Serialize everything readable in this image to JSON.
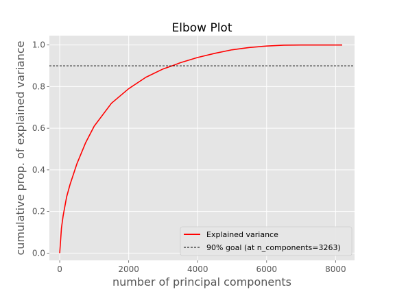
{
  "chart_data": {
    "type": "line",
    "title": "Elbow Plot",
    "xlabel": "number of principal components",
    "ylabel": "cumulative prop. of explained variance",
    "xlim": [
      -300,
      8550
    ],
    "ylim": [
      -0.035,
      1.045
    ],
    "xticks": [
      0,
      2000,
      4000,
      6000,
      8000
    ],
    "yticks": [
      0.0,
      0.2,
      0.4,
      0.6,
      0.8,
      1.0
    ],
    "grid": true,
    "legend_position": "lower-right",
    "series": [
      {
        "name": "Explained variance",
        "color": "#ff0000",
        "style": "solid",
        "x": [
          0,
          50,
          100,
          200,
          300,
          500,
          750,
          1000,
          1500,
          2000,
          2500,
          3000,
          3263,
          3500,
          4000,
          4500,
          5000,
          5500,
          6000,
          6500,
          7000,
          7500,
          8000,
          8192
        ],
        "y": [
          0.0,
          0.12,
          0.18,
          0.27,
          0.33,
          0.43,
          0.53,
          0.61,
          0.72,
          0.79,
          0.845,
          0.885,
          0.9,
          0.915,
          0.94,
          0.96,
          0.977,
          0.988,
          0.995,
          0.999,
          1.0,
          1.0,
          1.0,
          1.0
        ]
      },
      {
        "name": "90% goal (at n_components=3263)",
        "color": "#000000",
        "style": "dashed",
        "y_const": 0.9
      }
    ]
  }
}
